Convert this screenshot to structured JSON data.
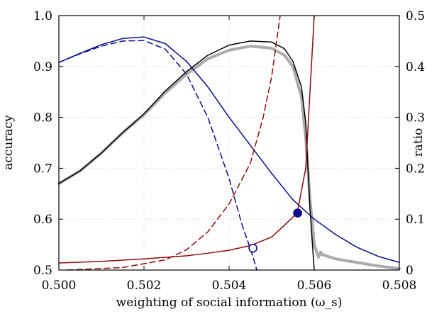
{
  "chart_data": {
    "type": "line",
    "title": "",
    "xlabel": "weighting of social information (ω_s)",
    "ylabel_left": "accuracy",
    "ylabel_right": "ratio",
    "xlim": [
      0.5,
      0.508
    ],
    "ylim_left": [
      0.5,
      1.0
    ],
    "ylim_right": [
      0,
      0.5
    ],
    "grid": true,
    "x_ticks": [
      "0.500",
      "0.502",
      "0.504",
      "0.506",
      "0.508"
    ],
    "y_left_ticks": [
      "0.5",
      "0.6",
      "0.7",
      "0.8",
      "0.9",
      "1.0"
    ],
    "y_right_ticks": [
      "0",
      "0.1",
      "0.2",
      "0.3",
      "0.4",
      "0.5"
    ],
    "series": [
      {
        "axis": "left",
        "color": "#aaaaaa",
        "dash": "",
        "width": 4,
        "x": [
          0.5,
          0.5005,
          0.501,
          0.5015,
          0.502,
          0.5025,
          0.503,
          0.5035,
          0.504,
          0.5045,
          0.505,
          0.5053,
          0.5055,
          0.5057,
          0.5058,
          0.5059,
          0.506,
          0.5061,
          0.50615,
          0.5062,
          0.5065,
          0.507,
          0.5075,
          0.508
        ],
        "y": [
          0.67,
          0.695,
          0.73,
          0.77,
          0.805,
          0.848,
          0.885,
          0.915,
          0.932,
          0.94,
          0.936,
          0.922,
          0.9,
          0.84,
          0.76,
          0.64,
          0.55,
          0.525,
          0.535,
          0.53,
          0.522,
          0.515,
          0.508,
          0.503
        ]
      },
      {
        "axis": "left",
        "color": "#000000",
        "dash": "",
        "width": 1.5,
        "x": [
          0.5,
          0.5005,
          0.501,
          0.5015,
          0.502,
          0.5025,
          0.503,
          0.5035,
          0.504,
          0.5045,
          0.505,
          0.5053,
          0.5055,
          0.5057,
          0.5058,
          0.5059,
          0.506
        ],
        "y": [
          0.67,
          0.695,
          0.73,
          0.77,
          0.807,
          0.852,
          0.89,
          0.922,
          0.942,
          0.95,
          0.948,
          0.935,
          0.91,
          0.86,
          0.79,
          0.62,
          0.5
        ]
      },
      {
        "axis": "right",
        "color": "#0a0a8c",
        "dash": "",
        "width": 1.5,
        "x": [
          0.5,
          0.5005,
          0.501,
          0.5015,
          0.502,
          0.5025,
          0.503,
          0.5035,
          0.504,
          0.5045,
          0.505,
          0.5055,
          0.506,
          0.5065,
          0.507,
          0.5075,
          0.508
        ],
        "y": [
          0.408,
          0.426,
          0.443,
          0.455,
          0.458,
          0.445,
          0.41,
          0.36,
          0.3,
          0.245,
          0.19,
          0.138,
          0.1,
          0.07,
          0.045,
          0.027,
          0.015
        ]
      },
      {
        "axis": "right",
        "color": "#0a0a8c",
        "dash": "8,5",
        "width": 1.5,
        "x": [
          0.5,
          0.5005,
          0.501,
          0.5015,
          0.502,
          0.5025,
          0.503,
          0.5035,
          0.504,
          0.5043,
          0.5045,
          0.5046,
          0.50465
        ],
        "y": [
          0.408,
          0.425,
          0.44,
          0.45,
          0.451,
          0.434,
          0.385,
          0.3,
          0.18,
          0.09,
          0.042,
          0.015,
          0
        ]
      },
      {
        "axis": "right",
        "color": "#8c0a0a",
        "dash": "",
        "width": 1.5,
        "x": [
          0.5,
          0.501,
          0.502,
          0.503,
          0.5035,
          0.504,
          0.5045,
          0.505,
          0.5053,
          0.5056,
          0.5058,
          0.5059,
          0.506
        ],
        "y": [
          0.014,
          0.017,
          0.022,
          0.028,
          0.033,
          0.039,
          0.048,
          0.065,
          0.088,
          0.112,
          0.2,
          0.35,
          0.5
        ]
      },
      {
        "axis": "right",
        "color": "#8c0a0a",
        "dash": "8,5",
        "width": 1.5,
        "x": [
          0.5002,
          0.5015,
          0.5025,
          0.503,
          0.5035,
          0.504,
          0.5045,
          0.5048,
          0.505,
          0.5051,
          0.5052
        ],
        "y": [
          0,
          0.005,
          0.02,
          0.04,
          0.075,
          0.13,
          0.21,
          0.3,
          0.38,
          0.44,
          0.5
        ]
      }
    ],
    "markers": [
      {
        "axis": "right",
        "x": 0.50456,
        "y": 0.043,
        "filled": false,
        "color": "#0a0a8c"
      },
      {
        "axis": "right",
        "x": 0.50561,
        "y": 0.112,
        "filled": true,
        "color": "#0a0a8c"
      }
    ]
  }
}
